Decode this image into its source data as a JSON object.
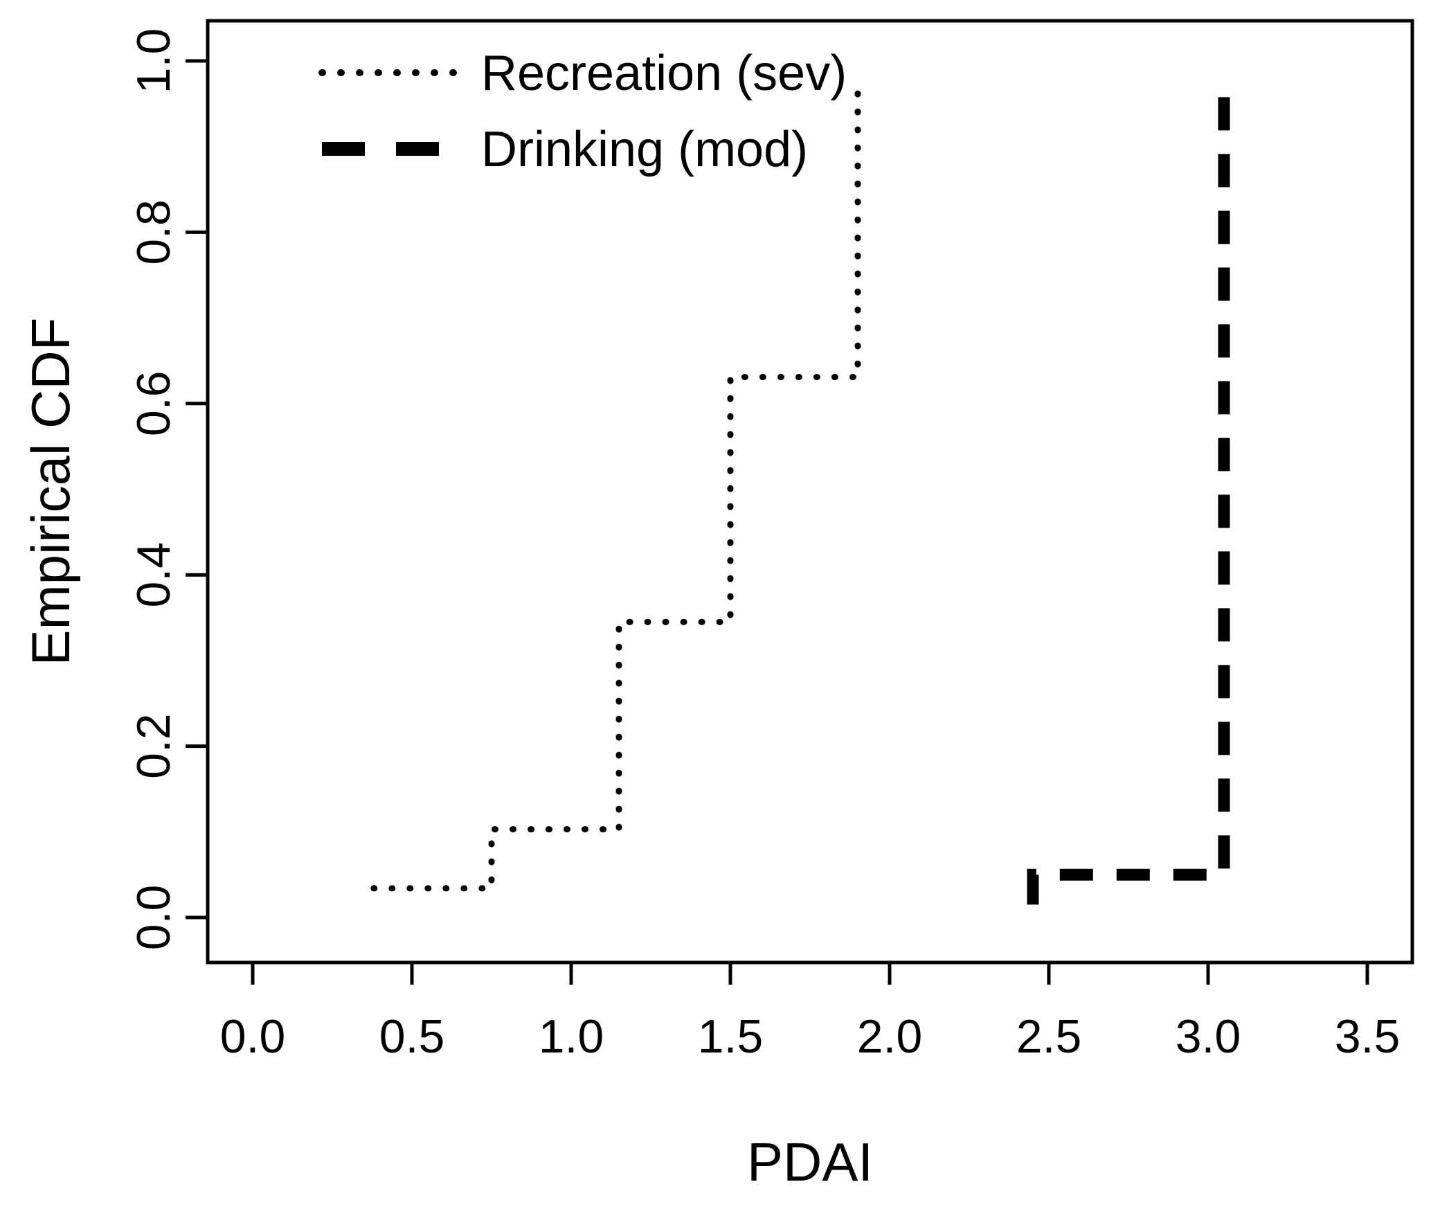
{
  "figure": {
    "background": "#ffffff",
    "line_color": "#000000"
  },
  "chart_data": {
    "type": "line",
    "subtype": "empirical-cdf-step",
    "title": "",
    "xlabel": "PDAI",
    "ylabel": "Empirical CDF",
    "xlim": [
      0.0,
      3.5
    ],
    "ylim": [
      0.0,
      1.0
    ],
    "x_ticks": [
      "0.0",
      "0.5",
      "1.0",
      "1.5",
      "2.0",
      "2.5",
      "3.0",
      "3.5"
    ],
    "y_ticks": [
      "0.0",
      "0.2",
      "0.4",
      "0.6",
      "0.8",
      "1.0"
    ],
    "grid": false,
    "legend_position": "top-left",
    "series": [
      {
        "name": "Recreation (sev)",
        "line_style": "dotted",
        "color": "#000000",
        "vertices": [
          [
            0.38,
            0.034
          ],
          [
            0.75,
            0.034
          ],
          [
            0.75,
            0.103
          ],
          [
            1.15,
            0.103
          ],
          [
            1.15,
            0.345
          ],
          [
            1.5,
            0.345
          ],
          [
            1.5,
            0.631
          ],
          [
            1.9,
            0.631
          ],
          [
            1.9,
            0.975
          ]
        ]
      },
      {
        "name": "Drinking (mod)",
        "line_style": "dashed",
        "color": "#000000",
        "vertices": [
          [
            2.45,
            0.015
          ],
          [
            2.45,
            0.05
          ],
          [
            3.05,
            0.05
          ],
          [
            3.05,
            0.975
          ]
        ]
      }
    ]
  }
}
